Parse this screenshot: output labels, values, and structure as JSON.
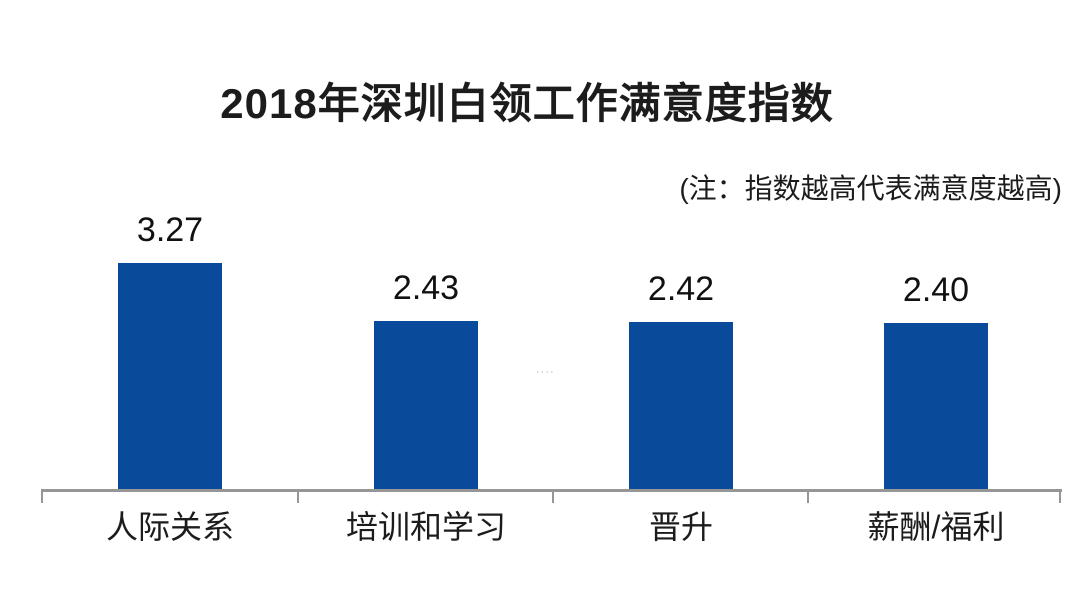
{
  "page": {
    "background": "#ffffff"
  },
  "artifact": "····",
  "chart_data": {
    "type": "bar",
    "title": "2018年深圳白领工作满意度指数",
    "note": "(注：指数越高代表满意度越高)",
    "categories": [
      "人际关系",
      "培训和学习",
      "晋升",
      "薪酬/福利"
    ],
    "values": [
      3.27,
      2.43,
      2.42,
      2.4
    ],
    "value_labels": [
      "3.27",
      "2.43",
      "2.42",
      "2.40"
    ],
    "xlabel": "",
    "ylabel": "",
    "ylim": [
      0,
      3.5
    ],
    "grid": false,
    "legend": false,
    "orientation": "vertical",
    "bar_color": "#0a4a9b",
    "axis_color": "#969696",
    "text_color": "#1c1c1c",
    "layout_hint": "category x-axis with end/boundary ticks, no y-axis, value labels above bars, note at top right"
  }
}
